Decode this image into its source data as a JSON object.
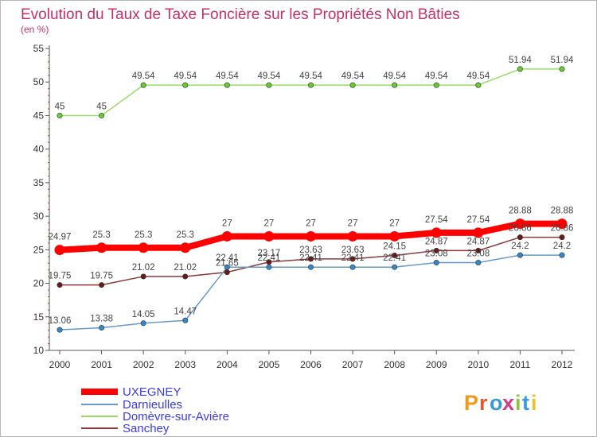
{
  "chart_data": {
    "type": "line",
    "title": "Evolution du Taux de Taxe Foncière sur les Propriétés Non Bâties",
    "subtitle": "(en %)",
    "x": [
      2000,
      2001,
      2002,
      2003,
      2004,
      2005,
      2006,
      2007,
      2008,
      2009,
      2010,
      2011,
      2012
    ],
    "x_tick_labels": [
      "2000",
      "2001",
      "2002",
      "2003",
      "2004",
      "2005",
      "2006",
      "2007",
      "2008",
      "2009",
      "2010",
      "2011",
      "2012"
    ],
    "ylim": [
      10,
      55
    ],
    "y_ticks": [
      10,
      15,
      20,
      25,
      30,
      35,
      40,
      45,
      50,
      55
    ],
    "y_tick_labels": [
      "10",
      "15",
      "20",
      "25",
      "30",
      "35",
      "40",
      "45",
      "50",
      "55"
    ],
    "grid": false,
    "legend_position": "bottom-left",
    "series": [
      {
        "name": "Domèvre-sur-Avière",
        "color": "#99dd66",
        "marker_color": "#66cc33",
        "values": [
          45,
          45,
          49.54,
          49.54,
          49.54,
          49.54,
          49.54,
          49.54,
          49.54,
          49.54,
          49.54,
          51.94,
          51.94
        ],
        "labels": [
          "45",
          "45",
          "49.54",
          "49.54",
          "49.54",
          "49.54",
          "49.54",
          "49.54",
          "49.54",
          "49.54",
          "49.54",
          "51.94",
          "51.94"
        ]
      },
      {
        "name": "UXEGNEY",
        "color": "#ff0000",
        "marker_color": "#ff0000",
        "values": [
          24.97,
          25.3,
          25.3,
          25.3,
          27,
          27,
          27,
          27,
          27,
          27.54,
          27.54,
          28.88,
          28.88
        ],
        "labels": [
          "24.97",
          "25.3",
          "25.3",
          "25.3",
          "27",
          "27",
          "27",
          "27",
          "27",
          "27.54",
          "27.54",
          "28.88",
          "28.88"
        ]
      },
      {
        "name": "Sanchey",
        "color": "#8b3a3a",
        "marker_color": "#6b1a1a",
        "values": [
          19.75,
          19.75,
          21.02,
          21.02,
          21.65,
          23.17,
          23.63,
          23.63,
          24.15,
          24.87,
          24.87,
          26.86,
          26.86
        ],
        "labels": [
          "19.75",
          "19.75",
          "21.02",
          "21.02",
          "21.65",
          "23.17",
          "23.63",
          "23.63",
          "24.15",
          "24.87",
          "24.87",
          "26.86",
          "26.86"
        ]
      },
      {
        "name": "Darnieulles",
        "color": "#6699cc",
        "marker_color": "#3388cc",
        "values": [
          13.06,
          13.38,
          14.05,
          14.47,
          22.41,
          22.41,
          22.41,
          22.41,
          22.41,
          23.08,
          23.08,
          24.2,
          24.2
        ],
        "labels": [
          "13.06",
          "13.38",
          "14.05",
          "14.47",
          "22.41",
          "22.41",
          "22.41",
          "22.41",
          "22.41",
          "23.08",
          "23.08",
          "24.2",
          "24.2"
        ]
      }
    ],
    "legend": [
      {
        "name": "UXEGNEY",
        "color": "#ff0000"
      },
      {
        "name": "Darnieulles",
        "color": "#6699cc"
      },
      {
        "name": "Domèvre-sur-Avière",
        "color": "#99dd66"
      },
      {
        "name": "Sanchey",
        "color": "#8b3a3a"
      }
    ]
  },
  "logo": {
    "letters": [
      "P",
      "r",
      "o",
      "x",
      "i",
      "t",
      "i"
    ],
    "colors": [
      "#f09a1a",
      "#e8582a",
      "#3a9ad9",
      "#d43a8a",
      "#8ac43a",
      "#3a9ad9",
      "#f0c020"
    ]
  }
}
